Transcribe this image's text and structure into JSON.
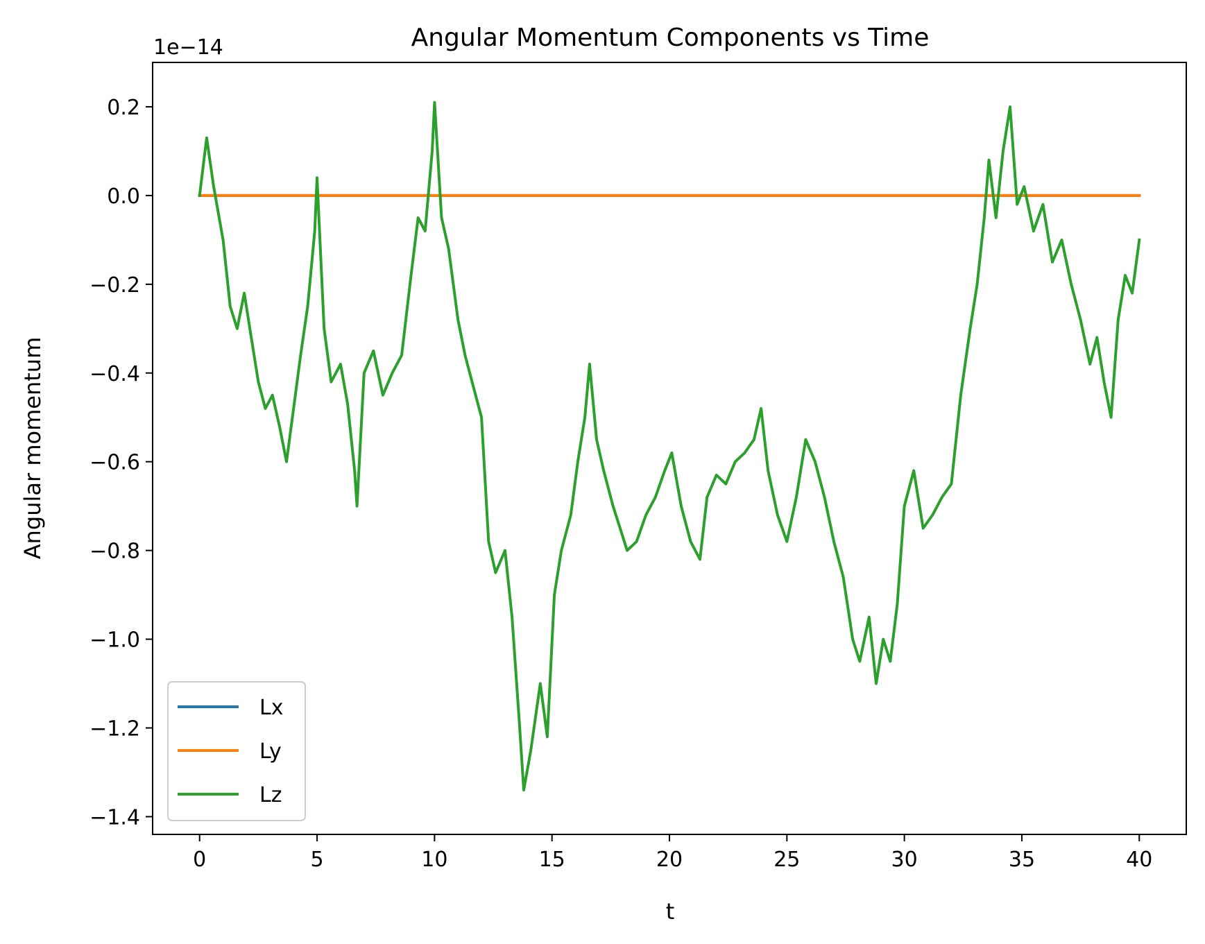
{
  "chart_data": {
    "type": "line",
    "title": "Angular Momentum Components vs Time",
    "xlabel": "t",
    "ylabel": "Angular momentum",
    "offset_text": "1e−14",
    "xlim": [
      -2,
      42
    ],
    "ylim": [
      -1.44,
      0.3
    ],
    "x_ticks": [
      0,
      5,
      10,
      15,
      20,
      25,
      30,
      35,
      40
    ],
    "x_tick_labels": [
      "0",
      "5",
      "10",
      "15",
      "20",
      "25",
      "30",
      "35",
      "40"
    ],
    "y_ticks": [
      0.2,
      0.0,
      -0.2,
      -0.4,
      -0.6,
      -0.8,
      -1.0,
      -1.2,
      -1.4
    ],
    "y_tick_labels": [
      "0.2",
      "0.0",
      "−0.2",
      "−0.4",
      "−0.6",
      "−0.8",
      "−1.0",
      "−1.2",
      "−1.4"
    ],
    "legend_position": "lower-left",
    "series": [
      {
        "name": "Lx",
        "color": "#1f77b4",
        "x": [
          0,
          40
        ],
        "y": [
          0,
          0
        ]
      },
      {
        "name": "Ly",
        "color": "#ff7f0e",
        "x": [
          0,
          40
        ],
        "y": [
          0,
          0
        ]
      },
      {
        "name": "Lz",
        "color": "#2ca02c",
        "x": [
          0,
          0.3,
          0.6,
          1.0,
          1.3,
          1.6,
          1.9,
          2.2,
          2.5,
          2.8,
          3.1,
          3.4,
          3.7,
          4.0,
          4.3,
          4.6,
          4.9,
          5.0,
          5.3,
          5.6,
          6.0,
          6.3,
          6.6,
          6.7,
          7.0,
          7.4,
          7.8,
          8.2,
          8.6,
          9.0,
          9.3,
          9.6,
          9.9,
          10.0,
          10.3,
          10.6,
          11.0,
          11.3,
          11.6,
          12.0,
          12.3,
          12.6,
          13.0,
          13.3,
          13.6,
          13.8,
          14.1,
          14.5,
          14.8,
          15.1,
          15.4,
          15.8,
          16.1,
          16.4,
          16.6,
          16.9,
          17.2,
          17.6,
          17.9,
          18.2,
          18.6,
          19.0,
          19.4,
          19.8,
          20.1,
          20.5,
          20.9,
          21.3,
          21.6,
          22.0,
          22.4,
          22.8,
          23.2,
          23.6,
          23.9,
          24.2,
          24.6,
          25.0,
          25.4,
          25.8,
          26.2,
          26.6,
          27.0,
          27.4,
          27.8,
          28.1,
          28.5,
          28.8,
          29.1,
          29.4,
          29.7,
          30.0,
          30.4,
          30.8,
          31.2,
          31.6,
          32.0,
          32.4,
          32.8,
          33.1,
          33.4,
          33.6,
          33.9,
          34.2,
          34.5,
          34.8,
          35.1,
          35.5,
          35.9,
          36.3,
          36.7,
          37.1,
          37.5,
          37.9,
          38.2,
          38.5,
          38.8,
          39.1,
          39.4,
          39.7,
          40.0
        ],
        "y": [
          0.0,
          0.13,
          0.02,
          -0.1,
          -0.25,
          -0.3,
          -0.22,
          -0.32,
          -0.42,
          -0.48,
          -0.45,
          -0.52,
          -0.6,
          -0.48,
          -0.36,
          -0.25,
          -0.08,
          0.04,
          -0.3,
          -0.42,
          -0.38,
          -0.47,
          -0.62,
          -0.7,
          -0.4,
          -0.35,
          -0.45,
          -0.4,
          -0.36,
          -0.18,
          -0.05,
          -0.08,
          0.1,
          0.21,
          -0.05,
          -0.12,
          -0.28,
          -0.36,
          -0.42,
          -0.5,
          -0.78,
          -0.85,
          -0.8,
          -0.95,
          -1.18,
          -1.34,
          -1.25,
          -1.1,
          -1.22,
          -0.9,
          -0.8,
          -0.72,
          -0.6,
          -0.5,
          -0.38,
          -0.55,
          -0.62,
          -0.7,
          -0.75,
          -0.8,
          -0.78,
          -0.72,
          -0.68,
          -0.62,
          -0.58,
          -0.7,
          -0.78,
          -0.82,
          -0.68,
          -0.63,
          -0.65,
          -0.6,
          -0.58,
          -0.55,
          -0.48,
          -0.62,
          -0.72,
          -0.78,
          -0.68,
          -0.55,
          -0.6,
          -0.68,
          -0.78,
          -0.86,
          -1.0,
          -1.05,
          -0.95,
          -1.1,
          -1.0,
          -1.05,
          -0.92,
          -0.7,
          -0.62,
          -0.75,
          -0.72,
          -0.68,
          -0.65,
          -0.45,
          -0.3,
          -0.2,
          -0.05,
          0.08,
          -0.05,
          0.1,
          0.2,
          -0.02,
          0.02,
          -0.08,
          -0.02,
          -0.15,
          -0.1,
          -0.2,
          -0.28,
          -0.38,
          -0.32,
          -0.42,
          -0.5,
          -0.28,
          -0.18,
          -0.22,
          -0.1
        ]
      }
    ]
  }
}
